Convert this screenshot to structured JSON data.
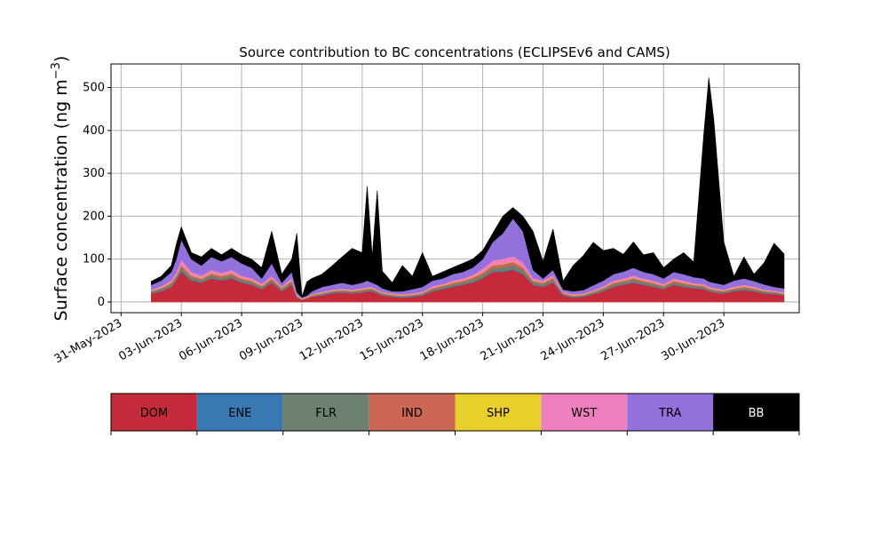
{
  "chart_data": {
    "type": "area",
    "title": "Source contribution to BC concentrations (ECLIPSEv6 and CAMS)",
    "ylabel": "Surface concentration (ng m",
    "ylabel_sup": "−3",
    "ylabel_close": ")",
    "xlabel": "",
    "stacked": true,
    "grid": true,
    "ylim": [
      -25,
      555
    ],
    "xlim": [
      "2023-05-30T12:00",
      "2023-07-03T18:00"
    ],
    "y_ticks": [
      0,
      100,
      200,
      300,
      400,
      500
    ],
    "y_tick_labels": [
      "0",
      "100",
      "200",
      "300",
      "400",
      "500"
    ],
    "x_ticks": [
      "2023-05-31",
      "2023-06-03",
      "2023-06-06",
      "2023-06-09",
      "2023-06-12",
      "2023-06-15",
      "2023-06-18",
      "2023-06-21",
      "2023-06-24",
      "2023-06-27",
      "2023-06-30"
    ],
    "x_tick_labels": [
      "31-May-2023",
      "03-Jun-2023",
      "06-Jun-2023",
      "09-Jun-2023",
      "12-Jun-2023",
      "15-Jun-2023",
      "18-Jun-2023",
      "21-Jun-2023",
      "24-Jun-2023",
      "27-Jun-2023",
      "30-Jun-2023"
    ],
    "x": [
      "2023-06-01T12:00",
      "2023-06-02T00:00",
      "2023-06-02T12:00",
      "2023-06-02T18:00",
      "2023-06-03T00:00",
      "2023-06-03T12:00",
      "2023-06-04T00:00",
      "2023-06-04T12:00",
      "2023-06-05T00:00",
      "2023-06-05T12:00",
      "2023-06-06T00:00",
      "2023-06-06T12:00",
      "2023-06-07T00:00",
      "2023-06-07T12:00",
      "2023-06-08T00:00",
      "2023-06-08T12:00",
      "2023-06-08T18:00",
      "2023-06-09T00:00",
      "2023-06-09T06:00",
      "2023-06-09T12:00",
      "2023-06-10T00:00",
      "2023-06-10T12:00",
      "2023-06-11T00:00",
      "2023-06-11T12:00",
      "2023-06-12T00:00",
      "2023-06-12T06:00",
      "2023-06-12T12:00",
      "2023-06-12T18:00",
      "2023-06-13T00:00",
      "2023-06-13T12:00",
      "2023-06-14T00:00",
      "2023-06-14T12:00",
      "2023-06-15T00:00",
      "2023-06-15T12:00",
      "2023-06-16T00:00",
      "2023-06-16T12:00",
      "2023-06-17T00:00",
      "2023-06-17T12:00",
      "2023-06-18T00:00",
      "2023-06-18T12:00",
      "2023-06-19T00:00",
      "2023-06-19T12:00",
      "2023-06-20T00:00",
      "2023-06-20T12:00",
      "2023-06-21T00:00",
      "2023-06-21T12:00",
      "2023-06-22T00:00",
      "2023-06-22T12:00",
      "2023-06-23T00:00",
      "2023-06-23T12:00",
      "2023-06-24T00:00",
      "2023-06-24T12:00",
      "2023-06-25T00:00",
      "2023-06-25T12:00",
      "2023-06-26T00:00",
      "2023-06-26T12:00",
      "2023-06-27T00:00",
      "2023-06-27T12:00",
      "2023-06-28T00:00",
      "2023-06-28T12:00",
      "2023-06-29T00:00",
      "2023-06-29T06:00",
      "2023-06-29T12:00",
      "2023-06-30T00:00",
      "2023-06-30T12:00",
      "2023-07-01T00:00",
      "2023-07-01T12:00",
      "2023-07-02T00:00",
      "2023-07-02T12:00",
      "2023-07-03T00:00"
    ],
    "series": [
      {
        "name": "DOM",
        "color": "#c62a3a",
        "values": [
          20,
          25,
          35,
          50,
          70,
          50,
          45,
          55,
          50,
          55,
          45,
          40,
          30,
          45,
          25,
          40,
          10,
          5,
          8,
          12,
          15,
          20,
          22,
          20,
          22,
          24,
          25,
          20,
          15,
          12,
          10,
          12,
          15,
          25,
          30,
          35,
          40,
          45,
          55,
          70,
          70,
          75,
          65,
          40,
          35,
          45,
          15,
          10,
          12,
          18,
          25,
          35,
          40,
          45,
          40,
          35,
          30,
          40,
          35,
          32,
          30,
          25,
          22,
          20,
          25,
          28,
          25,
          20,
          18,
          15
        ]
      },
      {
        "name": "ENE",
        "color": "#3a78b4",
        "values": [
          1,
          1,
          1,
          1,
          2,
          1,
          1,
          1,
          1,
          1,
          1,
          1,
          1,
          1,
          1,
          1,
          1,
          0,
          0,
          0,
          1,
          1,
          1,
          1,
          1,
          1,
          1,
          1,
          1,
          1,
          1,
          1,
          1,
          1,
          1,
          1,
          1,
          1,
          1,
          1,
          2,
          2,
          2,
          1,
          1,
          1,
          1,
          1,
          1,
          1,
          1,
          1,
          1,
          1,
          1,
          1,
          1,
          1,
          1,
          1,
          1,
          1,
          1,
          1,
          1,
          1,
          1,
          1,
          1,
          1
        ]
      },
      {
        "name": "FLR",
        "color": "#6e8070",
        "values": [
          3,
          4,
          5,
          6,
          8,
          6,
          5,
          6,
          5,
          6,
          5,
          5,
          4,
          5,
          4,
          5,
          2,
          1,
          1,
          2,
          3,
          3,
          3,
          3,
          3,
          3,
          3,
          3,
          3,
          2,
          2,
          2,
          3,
          4,
          4,
          5,
          5,
          6,
          7,
          8,
          9,
          9,
          8,
          5,
          5,
          6,
          3,
          2,
          2,
          3,
          4,
          5,
          5,
          6,
          5,
          5,
          4,
          5,
          5,
          4,
          4,
          3,
          3,
          3,
          3,
          4,
          3,
          3,
          3,
          2
        ]
      },
      {
        "name": "IND",
        "color": "#cc6655",
        "values": [
          2,
          3,
          4,
          5,
          6,
          5,
          4,
          5,
          5,
          5,
          4,
          4,
          3,
          4,
          3,
          4,
          2,
          1,
          1,
          2,
          2,
          2,
          2,
          2,
          3,
          3,
          3,
          2,
          2,
          2,
          2,
          2,
          2,
          3,
          3,
          4,
          4,
          5,
          6,
          7,
          7,
          8,
          7,
          4,
          4,
          5,
          2,
          2,
          2,
          2,
          3,
          4,
          4,
          4,
          4,
          4,
          3,
          4,
          4,
          3,
          3,
          3,
          3,
          2,
          3,
          3,
          3,
          2,
          2,
          2
        ]
      },
      {
        "name": "SHP",
        "color": "#e8cf2c",
        "values": [
          1,
          1,
          1,
          1,
          1,
          1,
          1,
          1,
          1,
          1,
          1,
          1,
          1,
          1,
          1,
          1,
          1,
          1,
          1,
          1,
          1,
          1,
          1,
          1,
          1,
          1,
          1,
          1,
          1,
          1,
          1,
          1,
          1,
          1,
          1,
          1,
          1,
          1,
          1,
          1,
          1,
          1,
          1,
          1,
          1,
          1,
          1,
          1,
          1,
          1,
          1,
          1,
          1,
          1,
          1,
          1,
          1,
          1,
          1,
          1,
          1,
          1,
          1,
          1,
          1,
          1,
          1,
          1,
          1,
          1
        ]
      },
      {
        "name": "WST",
        "color": "#f07fc0",
        "values": [
          2,
          3,
          5,
          7,
          12,
          8,
          6,
          7,
          6,
          7,
          5,
          5,
          4,
          5,
          3,
          5,
          2,
          1,
          1,
          1,
          2,
          2,
          2,
          2,
          2,
          2,
          2,
          2,
          2,
          2,
          2,
          2,
          2,
          3,
          3,
          4,
          4,
          5,
          8,
          10,
          12,
          12,
          10,
          5,
          4,
          5,
          2,
          2,
          2,
          2,
          3,
          4,
          4,
          5,
          4,
          4,
          3,
          4,
          4,
          3,
          3,
          3,
          3,
          2,
          3,
          3,
          3,
          2,
          2,
          2
        ]
      },
      {
        "name": "TRA",
        "color": "#9370db",
        "values": [
          11,
          13,
          19,
          30,
          46,
          29,
          23,
          30,
          27,
          30,
          29,
          24,
          12,
          29,
          8,
          14,
          5,
          2,
          3,
          7,
          11,
          11,
          14,
          11,
          13,
          16,
          10,
          11,
          8,
          5,
          7,
          10,
          11,
          13,
          13,
          15,
          15,
          17,
          22,
          43,
          59,
          88,
          72,
          19,
          5,
          12,
          5,
          7,
          8,
          12,
          13,
          15,
          16,
          18,
          15,
          15,
          13,
          15,
          15,
          14,
          13,
          12,
          12,
          11,
          14,
          15,
          13,
          12,
          8,
          9
        ]
      },
      {
        "name": "BB",
        "color": "#000000",
        "values": [
          8,
          10,
          15,
          35,
          30,
          15,
          20,
          20,
          15,
          20,
          20,
          20,
          25,
          75,
          20,
          30,
          137,
          1,
          32,
          30,
          30,
          44,
          60,
          85,
          70,
          220,
          60,
          220,
          40,
          20,
          60,
          30,
          80,
          10,
          15,
          15,
          20,
          20,
          20,
          20,
          40,
          25,
          35,
          90,
          40,
          95,
          20,
          60,
          80,
          100,
          70,
          60,
          40,
          60,
          40,
          50,
          25,
          30,
          50,
          35,
          335,
          475,
          381,
          100,
          10,
          50,
          16,
          50,
          102,
          80
        ]
      }
    ]
  },
  "legend": {
    "items": [
      {
        "label": "DOM",
        "color": "#c62a3a",
        "text_color": "#000000"
      },
      {
        "label": "ENE",
        "color": "#3a78b4",
        "text_color": "#000000"
      },
      {
        "label": "FLR",
        "color": "#6e8070",
        "text_color": "#000000"
      },
      {
        "label": "IND",
        "color": "#cc6655",
        "text_color": "#000000"
      },
      {
        "label": "SHP",
        "color": "#e8cf2c",
        "text_color": "#000000"
      },
      {
        "label": "WST",
        "color": "#f07fc0",
        "text_color": "#000000"
      },
      {
        "label": "TRA",
        "color": "#9370db",
        "text_color": "#000000"
      },
      {
        "label": "BB",
        "color": "#000000",
        "text_color": "#ffffff"
      }
    ]
  }
}
